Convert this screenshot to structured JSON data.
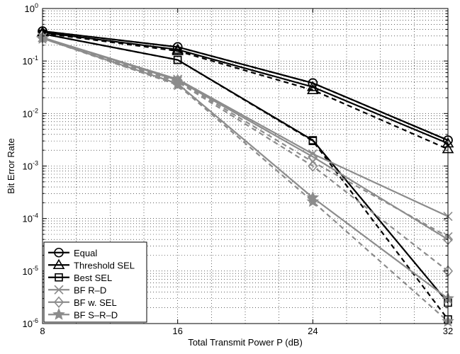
{
  "chart_data": {
    "type": "line",
    "xlabel": "Total Transmit Power P (dB)",
    "ylabel": "Bit Error Rate",
    "xscale": "linear",
    "yscale": "log",
    "xlim": [
      8,
      32
    ],
    "ylim": [
      1e-06,
      1
    ],
    "xticks": [
      "8",
      "16",
      "24",
      "32"
    ],
    "yticks": [
      {
        "base": "10",
        "exp": "0"
      },
      {
        "base": "10",
        "exp": "-1"
      },
      {
        "base": "10",
        "exp": "-2"
      },
      {
        "base": "10",
        "exp": "-3"
      },
      {
        "base": "10",
        "exp": "-4"
      },
      {
        "base": "10",
        "exp": "-5"
      },
      {
        "base": "10",
        "exp": "-6"
      }
    ],
    "grid": true,
    "legend_position": "bottom-left",
    "x": [
      8,
      16,
      24,
      32
    ],
    "series": [
      {
        "name": "Equal",
        "marker": "circle",
        "color": "#000000",
        "style": "solid",
        "values": [
          0.37,
          0.185,
          0.038,
          0.0031
        ]
      },
      {
        "name": "",
        "marker": "circle",
        "color": "#000000",
        "style": "dashed",
        "values": [
          0.37,
          0.185,
          0.038,
          0.0031
        ]
      },
      {
        "name": "Threshold SEL",
        "marker": "triangle",
        "color": "#000000",
        "style": "solid",
        "values": [
          0.35,
          0.165,
          0.032,
          0.0027
        ]
      },
      {
        "name": "",
        "marker": "triangle",
        "color": "#000000",
        "style": "dashed",
        "values": [
          0.34,
          0.155,
          0.028,
          0.0021
        ]
      },
      {
        "name": "Best SEL",
        "marker": "square",
        "color": "#000000",
        "style": "solid",
        "values": [
          0.33,
          0.105,
          0.0031,
          2.5e-06
        ]
      },
      {
        "name": "",
        "marker": "square",
        "color": "#000000",
        "style": "dashed",
        "values": [
          0.33,
          0.105,
          0.003,
          1.2e-06
        ]
      },
      {
        "name": "BF R–D",
        "marker": "x",
        "color": "#8c8c8c",
        "style": "solid",
        "values": [
          0.28,
          0.045,
          0.0017,
          0.00011
        ]
      },
      {
        "name": "",
        "marker": "x",
        "color": "#8c8c8c",
        "style": "dashed",
        "values": [
          0.28,
          0.042,
          0.0012,
          4.5e-05
        ]
      },
      {
        "name": "BF w. SEL",
        "marker": "diamond",
        "color": "#8c8c8c",
        "style": "solid",
        "values": [
          0.28,
          0.043,
          0.0015,
          4e-05
        ]
      },
      {
        "name": "",
        "marker": "diamond",
        "color": "#8c8c8c",
        "style": "dashed",
        "values": [
          0.28,
          0.04,
          0.001,
          1e-05
        ]
      },
      {
        "name": "BF S–R–D",
        "marker": "star",
        "color": "#8c8c8c",
        "style": "solid",
        "values": [
          0.27,
          0.037,
          0.00025,
          3e-06
        ]
      },
      {
        "name": "",
        "marker": "star",
        "color": "#8c8c8c",
        "style": "dashed",
        "values": [
          0.27,
          0.035,
          0.00021,
          1.1e-06
        ]
      }
    ]
  }
}
